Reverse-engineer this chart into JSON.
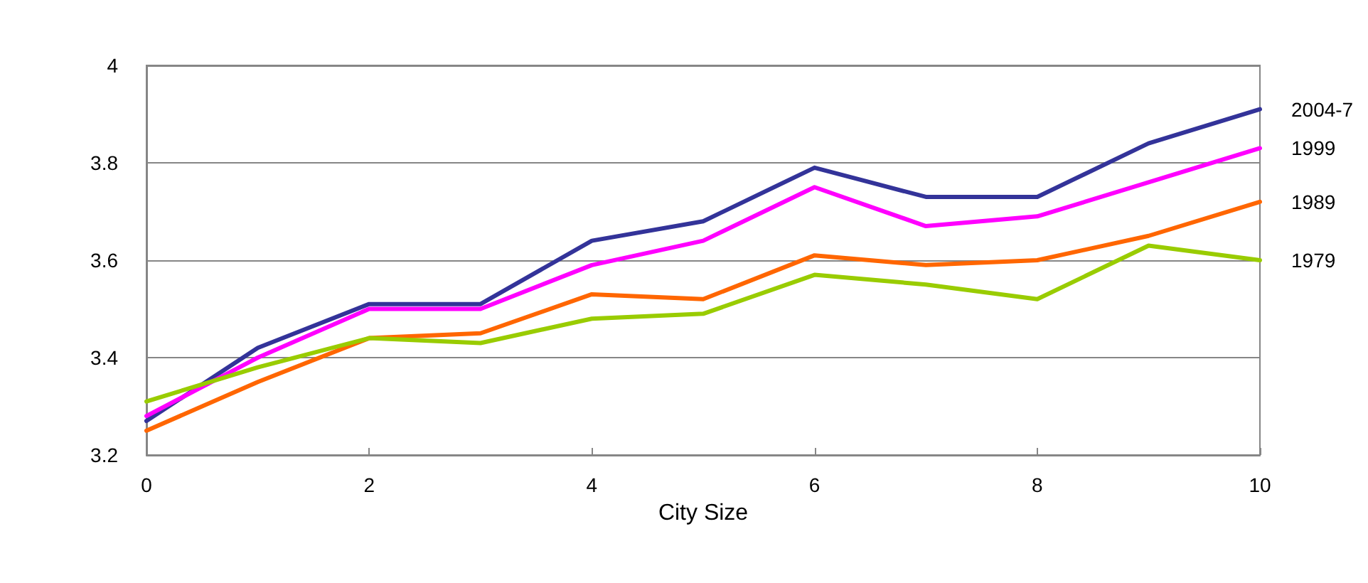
{
  "chart_data": {
    "type": "line",
    "xlabel": "City Size",
    "x": [
      0,
      1,
      2,
      3,
      4,
      5,
      6,
      7,
      8,
      9,
      10
    ],
    "series": [
      {
        "name": "2004-7",
        "color": "#333399",
        "values": [
          3.27,
          3.42,
          3.51,
          3.51,
          3.64,
          3.68,
          3.79,
          3.73,
          3.73,
          3.84,
          3.91
        ]
      },
      {
        "name": "1999",
        "color": "#ff00ff",
        "values": [
          3.28,
          3.4,
          3.5,
          3.5,
          3.59,
          3.64,
          3.75,
          3.67,
          3.69,
          3.76,
          3.83
        ]
      },
      {
        "name": "1989",
        "color": "#ff6600",
        "values": [
          3.25,
          3.35,
          3.44,
          3.45,
          3.53,
          3.52,
          3.61,
          3.59,
          3.6,
          3.65,
          3.72
        ]
      },
      {
        "name": "1979",
        "color": "#99cc00",
        "values": [
          3.31,
          3.38,
          3.44,
          3.43,
          3.48,
          3.49,
          3.57,
          3.55,
          3.52,
          3.63,
          3.6
        ]
      }
    ],
    "xlim": [
      0,
      10
    ],
    "xticks": [
      0,
      2,
      4,
      6,
      8,
      10
    ],
    "ylim": [
      3.2,
      4
    ],
    "yticks": [
      3.2,
      3.4,
      3.6,
      3.8,
      4
    ],
    "grid": "y",
    "legend": false,
    "marker": "none",
    "line_style": "solid"
  }
}
